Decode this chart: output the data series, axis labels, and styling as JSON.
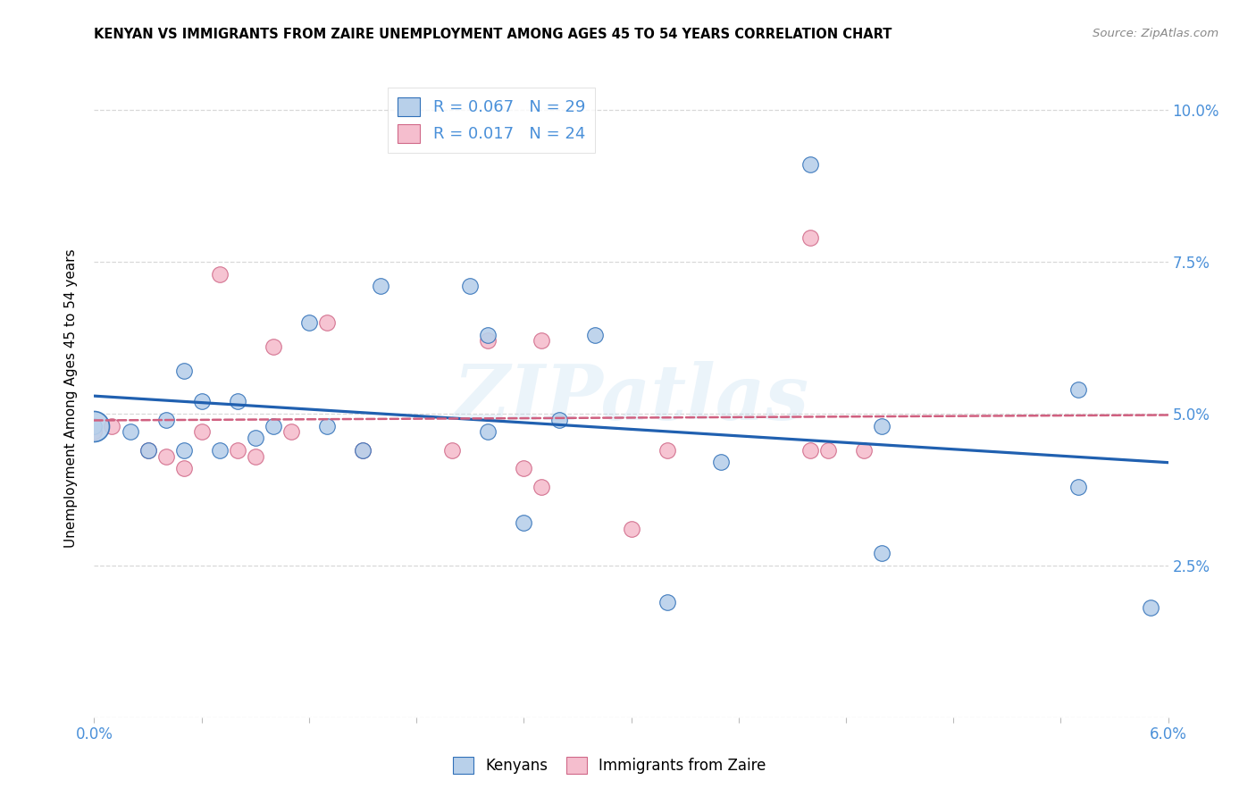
{
  "title": "KENYAN VS IMMIGRANTS FROM ZAIRE UNEMPLOYMENT AMONG AGES 45 TO 54 YEARS CORRELATION CHART",
  "source": "Source: ZipAtlas.com",
  "ylabel": "Unemployment Among Ages 45 to 54 years",
  "xlim": [
    0.0,
    0.06
  ],
  "ylim": [
    0.0,
    0.105
  ],
  "xtick_positions": [
    0.0,
    0.006,
    0.012,
    0.018,
    0.024,
    0.03,
    0.036,
    0.042,
    0.048,
    0.054,
    0.06
  ],
  "xtick_labels_show": {
    "0.0": "0.0%",
    "0.06": "6.0%"
  },
  "ytick_positions": [
    0.0,
    0.025,
    0.05,
    0.075,
    0.1
  ],
  "ytick_labels": [
    "",
    "2.5%",
    "5.0%",
    "7.5%",
    "10.0%"
  ],
  "background_color": "#ffffff",
  "grid_color": "#d8d8d8",
  "kenyan_face": "#b8d0ea",
  "kenyan_edge": "#3070b8",
  "zaire_face": "#f5bece",
  "zaire_edge": "#d06888",
  "kenyan_line": "#2060b0",
  "zaire_line": "#d06080",
  "label_color": "#4a90d9",
  "title_color": "#000000",
  "source_color": "#888888",
  "legend_R1": "0.067",
  "legend_N1": "29",
  "legend_R2": "0.017",
  "legend_N2": "24",
  "kenyan_x": [
    0.0,
    0.002,
    0.003,
    0.004,
    0.005,
    0.005,
    0.006,
    0.007,
    0.008,
    0.009,
    0.01,
    0.012,
    0.013,
    0.015,
    0.016,
    0.021,
    0.022,
    0.022,
    0.024,
    0.026,
    0.028,
    0.032,
    0.035,
    0.04,
    0.044,
    0.044,
    0.055,
    0.055,
    0.059
  ],
  "kenyan_y": [
    0.048,
    0.047,
    0.044,
    0.049,
    0.044,
    0.057,
    0.052,
    0.044,
    0.052,
    0.046,
    0.048,
    0.065,
    0.048,
    0.044,
    0.071,
    0.071,
    0.063,
    0.047,
    0.032,
    0.049,
    0.063,
    0.019,
    0.042,
    0.091,
    0.048,
    0.027,
    0.054,
    0.038,
    0.018
  ],
  "zaire_x": [
    0.0,
    0.001,
    0.003,
    0.004,
    0.005,
    0.006,
    0.007,
    0.008,
    0.009,
    0.01,
    0.011,
    0.013,
    0.015,
    0.02,
    0.022,
    0.024,
    0.025,
    0.025,
    0.03,
    0.032,
    0.04,
    0.04,
    0.041,
    0.043
  ],
  "zaire_y": [
    0.047,
    0.048,
    0.044,
    0.043,
    0.041,
    0.047,
    0.073,
    0.044,
    0.043,
    0.061,
    0.047,
    0.065,
    0.044,
    0.044,
    0.062,
    0.041,
    0.062,
    0.038,
    0.031,
    0.044,
    0.079,
    0.044,
    0.044,
    0.044
  ]
}
